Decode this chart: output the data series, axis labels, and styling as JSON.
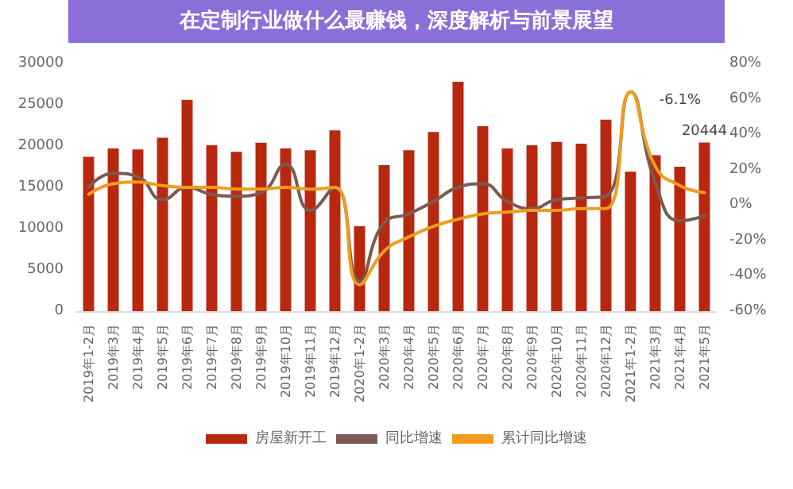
{
  "chart_data": {
    "type": "bar",
    "title": "在定制行业做什么最赚钱，深度解析与前景展望",
    "categories": [
      "2019年1-2月",
      "2019年3月",
      "2019年4月",
      "2019年5月",
      "2019年6月",
      "2019年7月",
      "2019年8月",
      "2019年9月",
      "2019年10月",
      "2019年11月",
      "2019年12月",
      "2020年1-2月",
      "2020年3月",
      "2020年4月",
      "2020年5月",
      "2020年6月",
      "2020年7月",
      "2020年8月",
      "2020年9月",
      "2020年10月",
      "2020年11月",
      "2020年12月",
      "2021年1-2月",
      "2021年3月",
      "2021年4月",
      "2021年5月"
    ],
    "series": [
      {
        "name": "房屋新开工",
        "color": "#b8280f",
        "values": [
          18700,
          19700,
          19600,
          21000,
          25600,
          20100,
          19300,
          20400,
          19700,
          19500,
          21900,
          10300,
          17700,
          19500,
          21700,
          27800,
          22400,
          19700,
          20100,
          20500,
          20300,
          23200,
          16900,
          18900,
          17500,
          20444
        ]
      },
      {
        "name": "同比增速",
        "type": "line",
        "axis": "y2",
        "color": "#7b5a52",
        "values": [
          10,
          18,
          16,
          3,
          10,
          6,
          5,
          7,
          23,
          -3,
          10,
          -43,
          -10,
          -5,
          2,
          10,
          12,
          2,
          -2,
          3,
          4,
          5,
          64,
          13,
          -9,
          -6.1
        ]
      },
      {
        "name": "累计同比增速",
        "type": "line",
        "axis": "y2",
        "color": "#f29b1d",
        "values": [
          6,
          12,
          13,
          11,
          10,
          10,
          9,
          9,
          10,
          9,
          10,
          -45,
          -26,
          -18,
          -12,
          -8,
          -5,
          -4,
          -3,
          -3,
          -2,
          -2,
          64,
          22,
          11,
          7
        ]
      }
    ],
    "ylim": [
      0,
      30000
    ],
    "yticks": [
      0,
      5000,
      10000,
      15000,
      20000,
      25000,
      30000
    ],
    "y2lim": [
      -60,
      80
    ],
    "y2ticks": [
      {
        "value": -60,
        "label": "-60%"
      },
      {
        "value": -40,
        "label": "-40%"
      },
      {
        "value": -20,
        "label": "-20%"
      },
      {
        "value": 0,
        "label": "0%"
      },
      {
        "value": 20,
        "label": "20%"
      },
      {
        "value": 40,
        "label": "40%"
      },
      {
        "value": 60,
        "label": "60%"
      },
      {
        "value": 80,
        "label": "80%"
      }
    ],
    "annotations": [
      {
        "text": "20444",
        "x": "2021年5月",
        "y": 20444
      },
      "-6.1%"
    ],
    "grid": false,
    "legend": "bottom",
    "marker": "none",
    "line_style": "solid"
  }
}
